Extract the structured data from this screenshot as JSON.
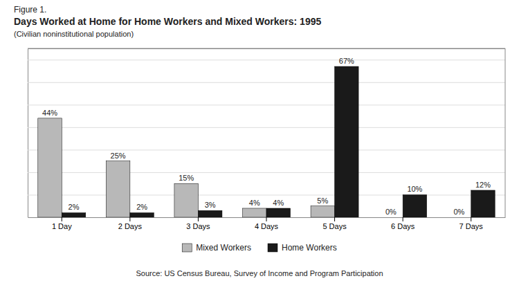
{
  "chart_data": {
    "type": "bar",
    "figure_label": "Figure 1.",
    "title": "Days Worked at Home for Home Workers and Mixed Workers: 1995",
    "subtitle": "(Civilian noninstitutional population)",
    "source": "Source: US Census Bureau, Survey of Income and Program Participation",
    "categories": [
      "1 Day",
      "2 Days",
      "3 Days",
      "4 Days",
      "5 Days",
      "6 Days",
      "7 Days"
    ],
    "series": [
      {
        "name": "Mixed Workers",
        "color": "#b8b8b8",
        "values": [
          44,
          25,
          15,
          4,
          5,
          0,
          0
        ],
        "value_labels": [
          "44%",
          "25%",
          "15%",
          "4%",
          "5%",
          "0%",
          "0%"
        ]
      },
      {
        "name": "Home Workers",
        "color": "#1a1a1a",
        "values": [
          2,
          2,
          3,
          4,
          67,
          10,
          12
        ],
        "value_labels": [
          "2%",
          "2%",
          "3%",
          "4%",
          "67%",
          "10%",
          "12%"
        ]
      }
    ],
    "ylim": [
      0,
      75
    ],
    "yticks": [
      0,
      10,
      20,
      30,
      40,
      50,
      60,
      70
    ],
    "grid": true,
    "legend": "bottom",
    "data_labels": true,
    "tick_labels": "x"
  }
}
